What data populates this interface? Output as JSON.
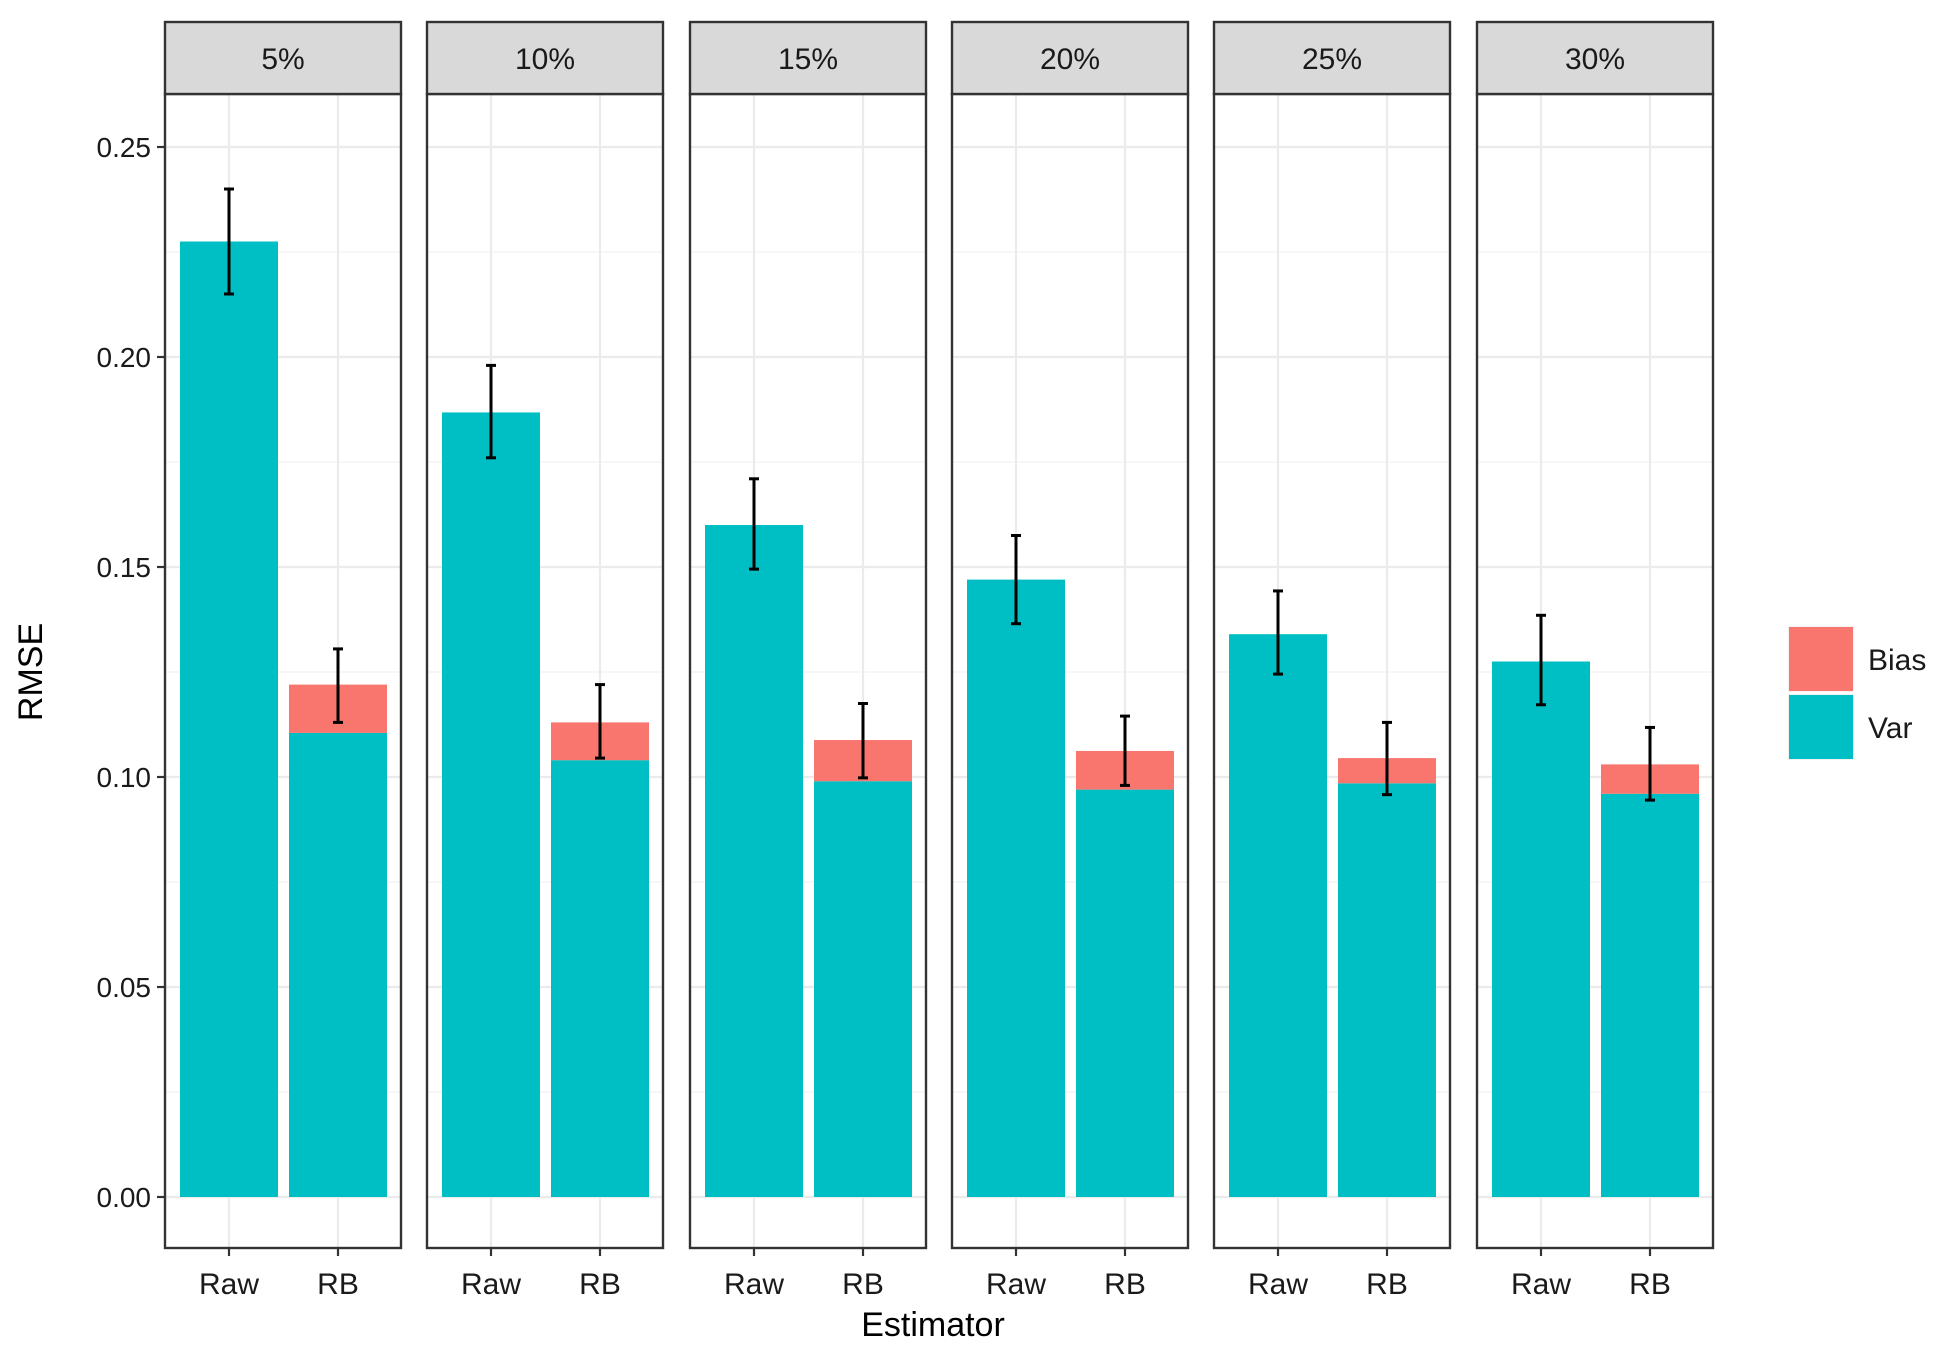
{
  "chart_data": {
    "type": "bar",
    "stacked": true,
    "facets": [
      "5%",
      "10%",
      "15%",
      "20%",
      "25%",
      "30%"
    ],
    "categories": [
      "Raw",
      "RB"
    ],
    "xlabel": "Estimator",
    "ylabel": "RMSE",
    "ylim": [
      -0.012,
      0.2625
    ],
    "yticks": [
      0.0,
      0.05,
      0.1,
      0.15,
      0.2,
      0.25
    ],
    "ytick_labels": [
      "0.00",
      "0.05",
      "0.10",
      "0.15",
      "0.20",
      "0.25"
    ],
    "grid": true,
    "legend": {
      "placement": "right",
      "entries": [
        {
          "name": "Bias",
          "color": "#F8766D"
        },
        {
          "name": "Var",
          "color": "#00BFC4"
        }
      ]
    },
    "series": [
      {
        "name": "Var",
        "color": "#00BFC4",
        "values": [
          [
            0.2275,
            0.1105
          ],
          [
            0.1868,
            0.104
          ],
          [
            0.16,
            0.099
          ],
          [
            0.147,
            0.097
          ],
          [
            0.134,
            0.0985
          ],
          [
            0.1275,
            0.096
          ]
        ]
      },
      {
        "name": "Bias",
        "color": "#F8766D",
        "values": [
          [
            0.0,
            0.0115
          ],
          [
            0.0,
            0.009
          ],
          [
            0.0,
            0.0098
          ],
          [
            0.0,
            0.0092
          ],
          [
            0.0,
            0.006
          ],
          [
            0.0,
            0.007
          ]
        ]
      }
    ],
    "error_bars": [
      [
        [
          0.215,
          0.24
        ],
        [
          0.113,
          0.1305
        ]
      ],
      [
        [
          0.176,
          0.198
        ],
        [
          0.1045,
          0.122
        ]
      ],
      [
        [
          0.1495,
          0.171
        ],
        [
          0.0998,
          0.1175
        ]
      ],
      [
        [
          0.1365,
          0.1575
        ],
        [
          0.098,
          0.1145
        ]
      ],
      [
        [
          0.1245,
          0.1443
        ],
        [
          0.0958,
          0.113
        ]
      ],
      [
        [
          0.1172,
          0.1385
        ],
        [
          0.0945,
          0.1118
        ]
      ]
    ]
  }
}
